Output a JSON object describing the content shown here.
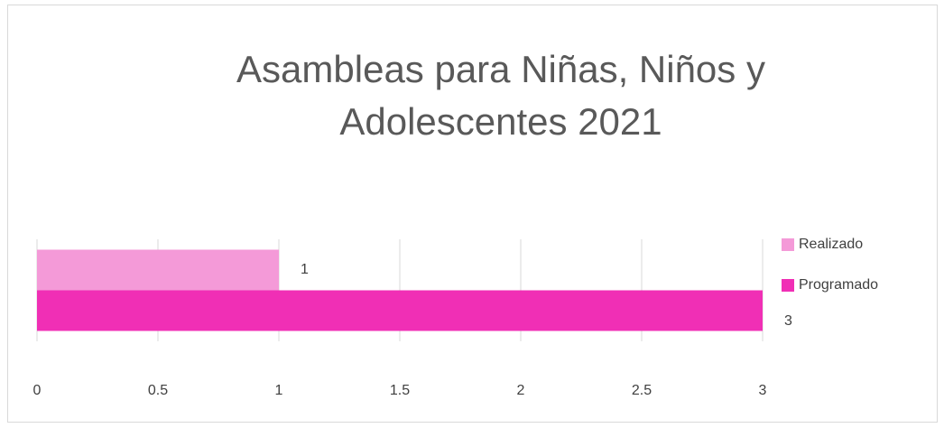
{
  "chart_data": {
    "type": "bar",
    "orientation": "horizontal",
    "title": "Asambleas para Niñas, Niños y Adolescentes 2021",
    "categories": [
      null
    ],
    "series": [
      {
        "name": "Realizado",
        "color": "#f49ad8",
        "values": [
          1
        ]
      },
      {
        "name": "Programado",
        "color": "#f02fb5",
        "values": [
          3
        ]
      }
    ],
    "xlim": [
      0,
      3
    ],
    "xticks": [
      0,
      0.5,
      1,
      1.5,
      2,
      2.5,
      3
    ],
    "grid": true,
    "legend": "right",
    "data_labels": true
  }
}
